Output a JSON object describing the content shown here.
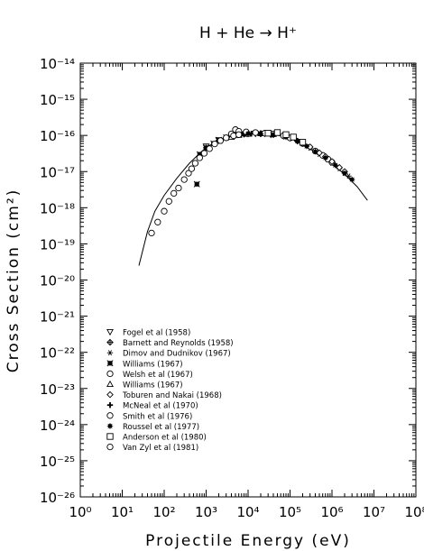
{
  "chart_data": {
    "type": "scatter",
    "title": "H + He → H⁺",
    "xlabel": "Projectile Energy (eV)",
    "ylabel": "Cross Section (cm²)",
    "xscale": "log",
    "yscale": "log",
    "xlim": [
      1,
      100000000
    ],
    "ylim": [
      1e-26,
      1e-14
    ],
    "x_ticks": [
      "10⁰",
      "10¹",
      "10²",
      "10³",
      "10⁴",
      "10⁵",
      "10⁶",
      "10⁷",
      "10⁸"
    ],
    "y_ticks": [
      "10⁻²⁶",
      "10⁻²⁵",
      "10⁻²⁴",
      "10⁻²³",
      "10⁻²²",
      "10⁻²¹",
      "10⁻²⁰",
      "10⁻¹⁹",
      "10⁻¹⁸",
      "10⁻¹⁷",
      "10⁻¹⁶",
      "10⁻¹⁵",
      "10⁻¹⁴"
    ],
    "grid": false,
    "legend_position": "lower-left",
    "fit_curve": {
      "name": "",
      "points": [
        [
          25,
          2.5e-20
        ],
        [
          40,
          2.2e-19
        ],
        [
          60,
          8e-19
        ],
        [
          100,
          2.2e-18
        ],
        [
          200,
          6.5e-18
        ],
        [
          400,
          1.7e-17
        ],
        [
          700,
          3.2e-17
        ],
        [
          1000,
          4.6e-17
        ],
        [
          2000,
          7.5e-17
        ],
        [
          4000,
          9.8e-17
        ],
        [
          10000,
          1.12e-16
        ],
        [
          30000,
          1.08e-16
        ],
        [
          60000,
          9.8e-17
        ],
        [
          100000,
          8.3e-17
        ],
        [
          200000,
          5.8e-17
        ],
        [
          400000,
          3.5e-17
        ],
        [
          1000000,
          1.6e-17
        ],
        [
          2000000,
          8.5e-18
        ],
        [
          4000000,
          3.8e-18
        ],
        [
          7000000,
          1.6e-18
        ]
      ]
    },
    "series": [
      {
        "name": "Fogel et al (1958)",
        "marker": "triangle-down",
        "points": [
          [
            1000,
            5e-17
          ],
          [
            2000,
            7.5e-17
          ],
          [
            4000,
            9.5e-17
          ],
          [
            8000,
            1.08e-16
          ],
          [
            15000,
            1.12e-16
          ],
          [
            25000,
            1.12e-16
          ],
          [
            35000,
            1.05e-16
          ]
        ]
      },
      {
        "name": "Barnett and Reynolds (1958)",
        "marker": "cross-diamond",
        "points": [
          [
            10000,
            1.1e-16
          ],
          [
            20000,
            1.12e-16
          ],
          [
            40000,
            1.05e-16
          ],
          [
            70000,
            9.5e-17
          ],
          [
            100000,
            8.5e-17
          ],
          [
            150000,
            7e-17
          ]
        ]
      },
      {
        "name": "Dimov and Dudnikov (1967)",
        "marker": "asterisk",
        "points": [
          [
            200000,
            5.8e-17
          ],
          [
            300000,
            4.5e-17
          ],
          [
            500000,
            3e-17
          ],
          [
            800000,
            2.1e-17
          ],
          [
            1000000,
            1.7e-17
          ],
          [
            1500000,
            1.2e-17
          ],
          [
            2000000,
            9e-18
          ],
          [
            2500000,
            7.5e-18
          ]
        ]
      },
      {
        "name": "Williams (1967)",
        "marker": "filled-square-star",
        "points": [
          [
            600,
            4.5e-18
          ],
          [
            700,
            3e-17
          ],
          [
            1000,
            4.5e-17
          ],
          [
            1500,
            6e-17
          ],
          [
            2000,
            7.5e-17
          ],
          [
            3000,
            8.8e-17
          ],
          [
            5000,
            1.02e-16
          ],
          [
            8000,
            1.1e-16
          ]
        ]
      },
      {
        "name": "Welsh et al (1967)",
        "marker": "circle",
        "points": [
          [
            100000,
            8.5e-17
          ],
          [
            200000,
            6e-17
          ],
          [
            400000,
            3.7e-17
          ],
          [
            600000,
            2.8e-17
          ],
          [
            800000,
            2.2e-17
          ],
          [
            1000000,
            1.8e-17
          ]
        ]
      },
      {
        "name": "Williams (1967)",
        "marker": "triangle-up",
        "points": [
          [
            2000,
            7e-17
          ],
          [
            4000,
            9e-17
          ],
          [
            6000,
            1.02e-16
          ],
          [
            10000,
            1.1e-16
          ],
          [
            20000,
            1.13e-16
          ],
          [
            40000,
            1.08e-16
          ]
        ]
      },
      {
        "name": "Toburen and Nakai (1968)",
        "marker": "diamond",
        "points": [
          [
            200000,
            6e-17
          ],
          [
            300000,
            4.8e-17
          ],
          [
            500000,
            3.3e-17
          ],
          [
            700000,
            2.6e-17
          ],
          [
            1000000,
            1.9e-17
          ],
          [
            1500000,
            1.3e-17
          ],
          [
            2000000,
            1e-17
          ]
        ]
      },
      {
        "name": "McNeal et al (1970)",
        "marker": "plus-bold",
        "points": [
          [
            1000,
            4.6e-17
          ],
          [
            2000,
            7.2e-17
          ],
          [
            3000,
            8.5e-17
          ],
          [
            5000,
            1e-16
          ],
          [
            8000,
            1.08e-16
          ],
          [
            12000,
            1.12e-16
          ],
          [
            20000,
            1.1e-16
          ],
          [
            35000,
            1.05e-16
          ]
        ]
      },
      {
        "name": "Smith et al (1976)",
        "marker": "circle",
        "points": [
          [
            4000,
            1.1e-16
          ],
          [
            5000,
            1.45e-16
          ],
          [
            6000,
            1.3e-16
          ],
          [
            9000,
            1.25e-16
          ],
          [
            15000,
            1.2e-16
          ],
          [
            25000,
            1.15e-16
          ],
          [
            40000,
            1.1e-16
          ],
          [
            70000,
            9.8e-17
          ]
        ]
      },
      {
        "name": "Roussel et al (1977)",
        "marker": "filled-star",
        "points": [
          [
            10000,
            1.12e-16
          ],
          [
            20000,
            1.1e-16
          ],
          [
            40000,
            1.05e-16
          ],
          [
            80000,
            9e-17
          ],
          [
            150000,
            7e-17
          ],
          [
            250000,
            5e-17
          ],
          [
            400000,
            3.6e-17
          ],
          [
            700000,
            2.4e-17
          ],
          [
            1200000,
            1.5e-17
          ],
          [
            2000000,
            9e-18
          ],
          [
            3000000,
            6e-18
          ]
        ]
      },
      {
        "name": "Anderson et al (1980)",
        "marker": "square",
        "points": [
          [
            30000,
            1.15e-16
          ],
          [
            50000,
            1.2e-16
          ],
          [
            80000,
            1.05e-16
          ],
          [
            120000,
            9e-17
          ],
          [
            200000,
            6.5e-17
          ]
        ]
      },
      {
        "name": "Van Zyl et al (1981)",
        "marker": "circle",
        "points": [
          [
            50,
            2e-19
          ],
          [
            70,
            4e-19
          ],
          [
            100,
            8e-19
          ],
          [
            130,
            1.5e-18
          ],
          [
            170,
            2.5e-18
          ],
          [
            220,
            3.5e-18
          ],
          [
            300,
            6e-18
          ],
          [
            380,
            9e-18
          ],
          [
            450,
            1.2e-17
          ],
          [
            550,
            1.7e-17
          ],
          [
            700,
            2.4e-17
          ],
          [
            900,
            3.2e-17
          ],
          [
            1200,
            4.3e-17
          ],
          [
            1600,
            5.8e-17
          ],
          [
            2200,
            7.2e-17
          ],
          [
            3000,
            8.6e-17
          ],
          [
            4500,
            9.8e-17
          ],
          [
            6000,
            1.05e-16
          ]
        ]
      }
    ]
  }
}
